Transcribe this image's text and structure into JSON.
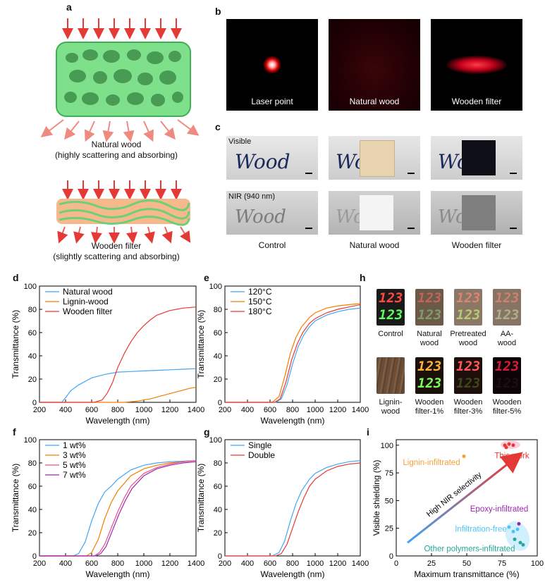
{
  "panel_labels": {
    "a": "a",
    "b": "b",
    "c": "c",
    "d": "d",
    "e": "e",
    "f": "f",
    "g": "g",
    "h": "h",
    "i": "i"
  },
  "panel_a": {
    "top_caption_1": "Natural wood",
    "top_caption_2": "(highly scattering and absorbing)",
    "bottom_caption_1": "Wooden filter",
    "bottom_caption_2": "(slightly scattering and absorbing)"
  },
  "panel_b": {
    "captions": [
      "Laser point",
      "Natural wood",
      "Wooden filter"
    ]
  },
  "panel_c": {
    "visible_label": "Visible",
    "nir_label": "NIR (940 nm)",
    "word": "Wood",
    "captions": [
      "Control",
      "Natural wood",
      "Wooden filter"
    ]
  },
  "panel_h": {
    "digits": "123",
    "captions": [
      [
        "Control"
      ],
      [
        "Natural",
        "wood"
      ],
      [
        "Pretreated",
        "wood"
      ],
      [
        "AA-",
        "wood"
      ],
      [
        "Lignin-",
        "wood"
      ],
      [
        "Wooden",
        "filter-1%"
      ],
      [
        "Wooden",
        "filter-3%"
      ],
      [
        "Wooden",
        "filter-5%"
      ]
    ]
  },
  "colors": {
    "red": "#e53935",
    "blue": "#42a5f5",
    "orange": "#f57c00",
    "green": "#69e27a"
  },
  "chart_data": [
    {
      "id": "d",
      "type": "line",
      "xlabel": "Wavelength (nm)",
      "ylabel": "Transmittance (%)",
      "xlim": [
        200,
        1400
      ],
      "ylim": [
        0,
        100
      ],
      "xticks": [
        200,
        400,
        600,
        800,
        1000,
        1200,
        1400
      ],
      "yticks": [
        0,
        20,
        40,
        60,
        80,
        100
      ],
      "legend": "top-left",
      "series": [
        {
          "name": "Natural wood",
          "color": "#42a5f5",
          "points": [
            [
              200,
              0
            ],
            [
              370,
              0
            ],
            [
              400,
              4
            ],
            [
              440,
              10
            ],
            [
              500,
              15
            ],
            [
              600,
              21
            ],
            [
              700,
              24
            ],
            [
              800,
              26
            ],
            [
              900,
              26.5
            ],
            [
              1000,
              27
            ],
            [
              1100,
              27.5
            ],
            [
              1200,
              28
            ],
            [
              1300,
              28.5
            ],
            [
              1400,
              29
            ]
          ]
        },
        {
          "name": "Lignin-wood",
          "color": "#f57c00",
          "points": [
            [
              200,
              0
            ],
            [
              850,
              0
            ],
            [
              950,
              1
            ],
            [
              1050,
              3
            ],
            [
              1150,
              6
            ],
            [
              1250,
              9
            ],
            [
              1350,
              12
            ],
            [
              1400,
              13
            ]
          ]
        },
        {
          "name": "Wooden filter",
          "color": "#e53935",
          "points": [
            [
              200,
              0
            ],
            [
              620,
              0
            ],
            [
              680,
              2
            ],
            [
              720,
              8
            ],
            [
              760,
              17
            ],
            [
              800,
              30
            ],
            [
              850,
              42
            ],
            [
              900,
              52
            ],
            [
              950,
              60
            ],
            [
              1000,
              66
            ],
            [
              1050,
              71
            ],
            [
              1100,
              75
            ],
            [
              1200,
              79
            ],
            [
              1300,
              81
            ],
            [
              1400,
              82
            ]
          ]
        }
      ]
    },
    {
      "id": "e",
      "type": "line",
      "xlabel": "Wavelength (nm)",
      "ylabel": "Transmittance (%)",
      "xlim": [
        200,
        1400
      ],
      "ylim": [
        0,
        100
      ],
      "xticks": [
        200,
        400,
        600,
        800,
        1000,
        1200,
        1400
      ],
      "yticks": [
        0,
        20,
        40,
        60,
        80,
        100
      ],
      "legend": "top-left",
      "series": [
        {
          "name": "120°C",
          "color": "#42a5f5",
          "points": [
            [
              200,
              0
            ],
            [
              650,
              0
            ],
            [
              700,
              3
            ],
            [
              750,
              15
            ],
            [
              800,
              33
            ],
            [
              850,
              48
            ],
            [
              900,
              58
            ],
            [
              950,
              65
            ],
            [
              1000,
              70
            ],
            [
              1100,
              75
            ],
            [
              1200,
              78
            ],
            [
              1300,
              80
            ],
            [
              1400,
              81
            ]
          ]
        },
        {
          "name": "150°C",
          "color": "#f57c00",
          "points": [
            [
              200,
              0
            ],
            [
              620,
              0
            ],
            [
              680,
              5
            ],
            [
              730,
              22
            ],
            [
              780,
              42
            ],
            [
              830,
              56
            ],
            [
              880,
              65
            ],
            [
              950,
              73
            ],
            [
              1000,
              77
            ],
            [
              1100,
              81
            ],
            [
              1200,
              83
            ],
            [
              1300,
              84
            ],
            [
              1400,
              85
            ]
          ]
        },
        {
          "name": "180°C",
          "color": "#e53935",
          "points": [
            [
              200,
              0
            ],
            [
              640,
              0
            ],
            [
              690,
              3
            ],
            [
              740,
              17
            ],
            [
              790,
              36
            ],
            [
              840,
              50
            ],
            [
              890,
              60
            ],
            [
              950,
              68
            ],
            [
              1000,
              72
            ],
            [
              1100,
              77
            ],
            [
              1200,
              80
            ],
            [
              1300,
              82
            ],
            [
              1400,
              84
            ]
          ]
        }
      ]
    },
    {
      "id": "f",
      "type": "line",
      "xlabel": "Wavelength (nm)",
      "ylabel": "Transmittance (%)",
      "xlim": [
        200,
        1400
      ],
      "ylim": [
        0,
        100
      ],
      "xticks": [
        200,
        400,
        600,
        800,
        1000,
        1200,
        1400
      ],
      "yticks": [
        0,
        20,
        40,
        60,
        80,
        100
      ],
      "legend": "top-left",
      "series": [
        {
          "name": "1 wt%",
          "color": "#42a5f5",
          "points": [
            [
              200,
              0
            ],
            [
              460,
              0
            ],
            [
              500,
              2
            ],
            [
              550,
              12
            ],
            [
              600,
              30
            ],
            [
              650,
              45
            ],
            [
              700,
              55
            ],
            [
              750,
              60
            ],
            [
              800,
              66
            ],
            [
              900,
              74
            ],
            [
              1000,
              78
            ],
            [
              1100,
              80
            ],
            [
              1200,
              81
            ],
            [
              1400,
              82
            ]
          ]
        },
        {
          "name": "3 wt%",
          "color": "#f57c00",
          "points": [
            [
              200,
              0
            ],
            [
              560,
              0
            ],
            [
              600,
              3
            ],
            [
              650,
              14
            ],
            [
              700,
              32
            ],
            [
              750,
              46
            ],
            [
              800,
              56
            ],
            [
              900,
              69
            ],
            [
              1000,
              75
            ],
            [
              1100,
              78
            ],
            [
              1200,
              80
            ],
            [
              1400,
              82
            ]
          ]
        },
        {
          "name": "5 wt%",
          "color": "#e94f8a",
          "points": [
            [
              200,
              0
            ],
            [
              620,
              0
            ],
            [
              660,
              3
            ],
            [
              700,
              10
            ],
            [
              750,
              24
            ],
            [
              800,
              38
            ],
            [
              850,
              50
            ],
            [
              900,
              60
            ],
            [
              1000,
              71
            ],
            [
              1100,
              76
            ],
            [
              1200,
              79
            ],
            [
              1300,
              81
            ],
            [
              1400,
              82
            ]
          ]
        },
        {
          "name": "7 wt%",
          "color": "#9c27b0",
          "points": [
            [
              200,
              0
            ],
            [
              630,
              0
            ],
            [
              670,
              2
            ],
            [
              710,
              8
            ],
            [
              760,
              22
            ],
            [
              810,
              36
            ],
            [
              860,
              48
            ],
            [
              910,
              58
            ],
            [
              1000,
              69
            ],
            [
              1100,
              75
            ],
            [
              1200,
              78
            ],
            [
              1300,
              80
            ],
            [
              1400,
              81
            ]
          ]
        }
      ]
    },
    {
      "id": "g",
      "type": "line",
      "xlabel": "Wavelength (nm)",
      "ylabel": "Transmittance (%)",
      "xlim": [
        200,
        1400
      ],
      "ylim": [
        0,
        100
      ],
      "xticks": [
        200,
        400,
        600,
        800,
        1000,
        1200,
        1400
      ],
      "yticks": [
        0,
        20,
        40,
        60,
        80,
        100
      ],
      "legend": "top-left",
      "series": [
        {
          "name": "Single",
          "color": "#42a5f5",
          "points": [
            [
              200,
              0
            ],
            [
              620,
              0
            ],
            [
              680,
              3
            ],
            [
              730,
              13
            ],
            [
              780,
              30
            ],
            [
              830,
              45
            ],
            [
              880,
              56
            ],
            [
              950,
              66
            ],
            [
              1000,
              71
            ],
            [
              1100,
              76
            ],
            [
              1200,
              79
            ],
            [
              1300,
              81
            ],
            [
              1400,
              82
            ]
          ]
        },
        {
          "name": "Double",
          "color": "#e53935",
          "points": [
            [
              200,
              0
            ],
            [
              650,
              0
            ],
            [
              700,
              2
            ],
            [
              750,
              10
            ],
            [
              800,
              24
            ],
            [
              850,
              38
            ],
            [
              900,
              50
            ],
            [
              950,
              60
            ],
            [
              1000,
              66
            ],
            [
              1100,
              73
            ],
            [
              1200,
              77
            ],
            [
              1300,
              79
            ],
            [
              1400,
              80
            ]
          ]
        }
      ]
    },
    {
      "id": "i",
      "type": "scatter",
      "xlabel": "Maximum transmittance (%)",
      "ylabel": "Visible shielding (%)",
      "xlim": [
        0,
        100
      ],
      "ylim": [
        0,
        105
      ],
      "xticks": [
        0,
        25,
        50,
        75,
        100
      ],
      "yticks": [
        0,
        25,
        50,
        75,
        100
      ],
      "arrow_label": "High NIR selectivity",
      "arrow_from": [
        8,
        12
      ],
      "arrow_to": [
        84,
        88
      ],
      "groups": [
        {
          "name": "This work",
          "color": "#e53935",
          "points": [
            [
              77,
              100
            ],
            [
              80,
              101
            ],
            [
              83,
              100
            ],
            [
              78,
              98
            ]
          ]
        },
        {
          "name": "Lignin-infiltrated",
          "color": "#f5a03a",
          "points": [
            [
              48,
              90
            ]
          ]
        },
        {
          "name": "Epoxy-infiltrated",
          "color": "#9c27b0",
          "points": [
            [
              87,
              29
            ]
          ]
        },
        {
          "name": "Infiltration-free",
          "color": "#4fc3f7",
          "points": [
            [
              80,
              26
            ],
            [
              83,
              22
            ],
            [
              86,
              24
            ]
          ]
        },
        {
          "name": "Other polymers-infiltrated",
          "color": "#26a69a",
          "points": [
            [
              84,
              15
            ],
            [
              88,
              12
            ],
            [
              90,
              10
            ]
          ]
        }
      ]
    }
  ]
}
